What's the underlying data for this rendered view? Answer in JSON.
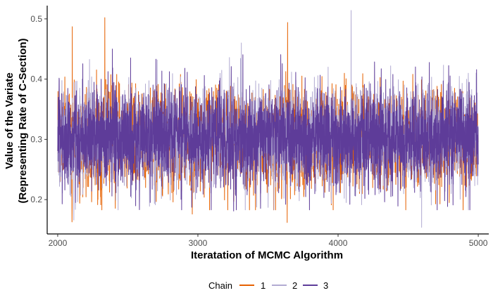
{
  "chart_data": {
    "type": "line",
    "title": "",
    "xlabel": "Iteratation of MCMC Algorithm",
    "ylabel_line1": "Value of the Variate",
    "ylabel_line2": "(Representing Rate of C-Section)",
    "xlim": [
      1925,
      5075
    ],
    "ylim": [
      0.143,
      0.522
    ],
    "x_ticks": [
      2000,
      3000,
      4000,
      5000
    ],
    "y_ticks": [
      0.2,
      0.3,
      0.4,
      0.5
    ],
    "x_tick_labels": [
      "2000",
      "3000",
      "4000",
      "5000"
    ],
    "y_tick_labels": [
      "0.2",
      "0.3",
      "0.4",
      "0.5"
    ],
    "grid": false,
    "legend": {
      "title": "Chain",
      "position": "bottom",
      "entries": [
        "1",
        "2",
        "3"
      ]
    },
    "series": [
      {
        "name": "1",
        "color": "#E66101",
        "center": 0.303,
        "spread": 0.041,
        "x_range": [
          2000,
          5000
        ],
        "notable_points": [
          [
            2104,
            0.487
          ],
          [
            2336,
            0.502
          ],
          [
            3640,
            0.494
          ],
          [
            2102,
            0.163
          ],
          [
            3637,
            0.162
          ],
          [
            2960,
            0.176
          ]
        ]
      },
      {
        "name": "2",
        "color": "#B2ABD2",
        "center": 0.303,
        "spread": 0.041,
        "x_range": [
          2000,
          5000
        ],
        "notable_points": [
          [
            4093,
            0.514
          ],
          [
            4596,
            0.154
          ],
          [
            2115,
            0.166
          ],
          [
            3310,
            0.46
          ]
        ]
      },
      {
        "name": "3",
        "color": "#5E3C99",
        "center": 0.303,
        "spread": 0.041,
        "x_range": [
          2000,
          5000
        ],
        "notable_points": [
          [
            4940,
            0.473
          ],
          [
            3255,
            0.181
          ],
          [
            4940,
            0.183
          ],
          [
            2390,
            0.45
          ]
        ]
      }
    ]
  }
}
